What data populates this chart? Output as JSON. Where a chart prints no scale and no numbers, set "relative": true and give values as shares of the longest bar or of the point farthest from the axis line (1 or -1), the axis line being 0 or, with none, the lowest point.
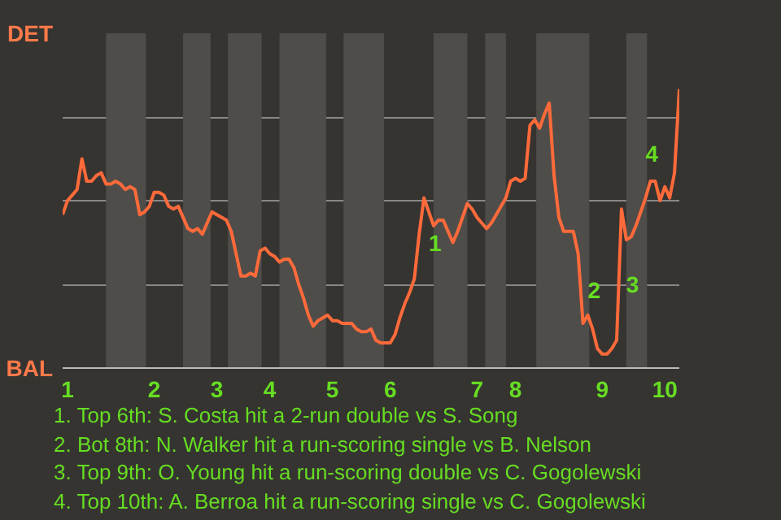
{
  "chart_data": {
    "type": "line",
    "relative": true,
    "categories": [
      null,
      "1",
      null,
      null,
      null,
      null,
      null,
      null,
      null,
      null,
      null,
      null,
      null,
      null,
      null,
      null,
      null,
      null,
      null,
      "2",
      null,
      null,
      null,
      null,
      null,
      null,
      null,
      null,
      null,
      null,
      null,
      null,
      "3",
      null,
      null,
      null,
      null,
      null,
      null,
      null,
      null,
      null,
      null,
      "4",
      null,
      null,
      null,
      null,
      null,
      null,
      null,
      null,
      null,
      null,
      null,
      null,
      "5",
      null,
      null,
      null,
      null,
      null,
      null,
      null,
      null,
      null,
      null,
      null,
      "6",
      null,
      null,
      null,
      null,
      null,
      null,
      null,
      null,
      null,
      null,
      null,
      null,
      null,
      null,
      null,
      null,
      null,
      "7",
      null,
      null,
      null,
      null,
      null,
      null,
      null,
      "8",
      null,
      null,
      null,
      null,
      null,
      null,
      null,
      null,
      null,
      null,
      null,
      null,
      null,
      null,
      null,
      null,
      null,
      "9",
      null,
      null,
      null,
      null,
      null,
      null,
      null,
      null,
      null,
      null,
      null,
      null,
      "10",
      null,
      null,
      null
    ],
    "series": [
      {
        "color": "#ff6a3a",
        "values": [
          0.55,
          0.6,
          0.62,
          0.64,
          0.75,
          0.67,
          0.67,
          0.69,
          0.7,
          0.66,
          0.66,
          0.67,
          0.66,
          0.64,
          0.65,
          0.64,
          0.55,
          0.56,
          0.58,
          0.63,
          0.63,
          0.62,
          0.58,
          0.57,
          0.58,
          0.54,
          0.5,
          0.49,
          0.5,
          0.48,
          0.52,
          0.56,
          0.55,
          0.54,
          0.53,
          0.49,
          0.41,
          0.33,
          0.33,
          0.34,
          0.33,
          0.42,
          0.43,
          0.41,
          0.4,
          0.38,
          0.39,
          0.39,
          0.36,
          0.3,
          0.25,
          0.19,
          0.15,
          0.17,
          0.18,
          0.19,
          0.17,
          0.17,
          0.16,
          0.16,
          0.16,
          0.14,
          0.13,
          0.13,
          0.14,
          0.1,
          0.09,
          0.09,
          0.09,
          0.12,
          0.18,
          0.23,
          0.27,
          0.32,
          0.48,
          0.61,
          0.56,
          0.51,
          0.53,
          0.53,
          0.49,
          0.45,
          0.49,
          0.54,
          0.59,
          0.57,
          0.54,
          0.52,
          0.5,
          0.52,
          0.55,
          0.58,
          0.61,
          0.67,
          0.68,
          0.67,
          0.68,
          0.87,
          0.89,
          0.86,
          0.91,
          0.95,
          0.69,
          0.54,
          0.49,
          0.49,
          0.49,
          0.41,
          0.16,
          0.19,
          0.14,
          0.07,
          0.05,
          0.05,
          0.07,
          0.1,
          0.57,
          0.46,
          0.47,
          0.51,
          0.56,
          0.61,
          0.67,
          0.67,
          0.6,
          0.65,
          0.61,
          0.7,
          1.0
        ]
      }
    ],
    "grid": "y",
    "marker": "none",
    "line_style": "solid",
    "annotations": [
      "DET",
      "BAL",
      "1",
      "2",
      "3",
      "4",
      "1. Top 6th: S. Costa hit a 2-run double vs S. Song",
      "2. Bot 8th: N. Walker hit a run-scoring single vs B. Nelson",
      "3. Top 9th: O. Young hit a run-scoring double vs C. Gogolewski",
      "4. Top 10th: A. Berroa hit a run-scoring single vs C. Gogolewski"
    ]
  }
}
